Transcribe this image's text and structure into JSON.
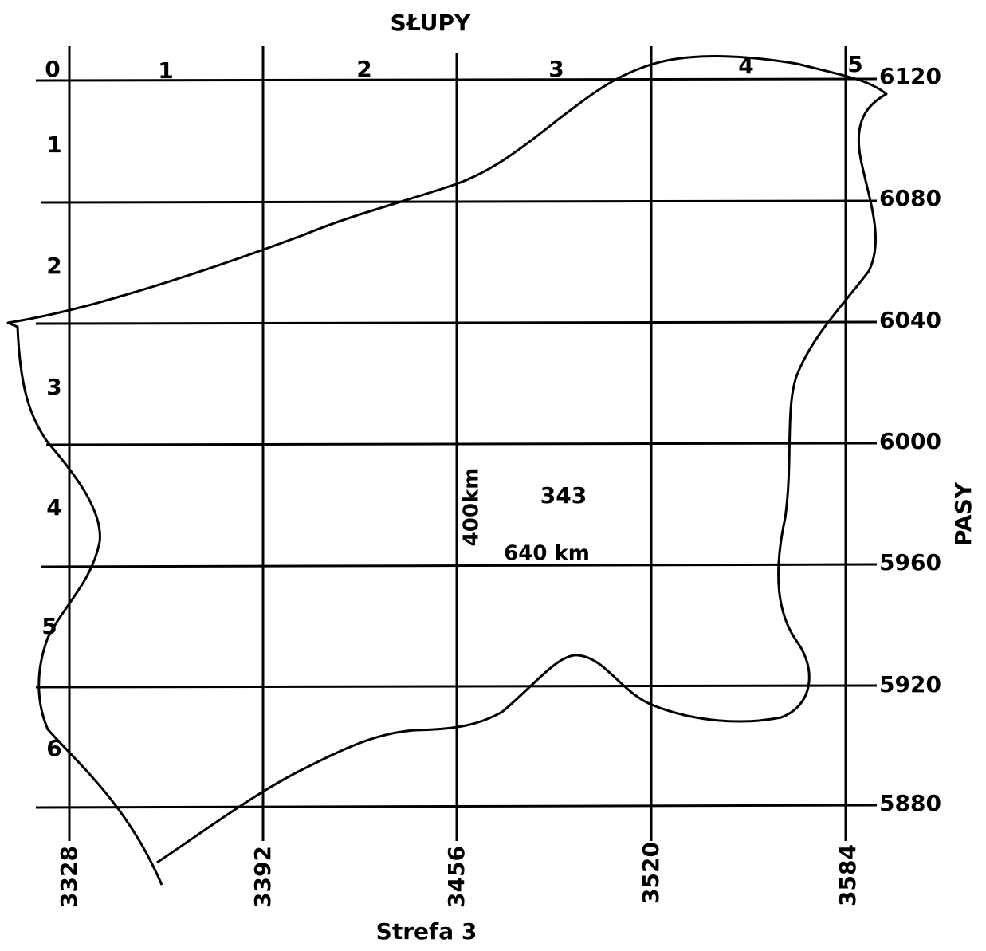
{
  "title": "SŁUPY",
  "columns": [
    "0",
    "1",
    "2",
    "3",
    "4",
    "5"
  ],
  "rows": [
    "1",
    "2",
    "3",
    "4",
    "5",
    "6"
  ],
  "right_labels": [
    "6120",
    "6080",
    "6040",
    "6000",
    "5960",
    "5920",
    "5880"
  ],
  "bottom_labels": [
    "3328",
    "3392",
    "3456",
    "3520",
    "3584"
  ],
  "bottom_title": "Strefa 3",
  "right_title": "PASY",
  "annotations": {
    "height": "400km",
    "width": "640 km",
    "sheet": "343"
  }
}
